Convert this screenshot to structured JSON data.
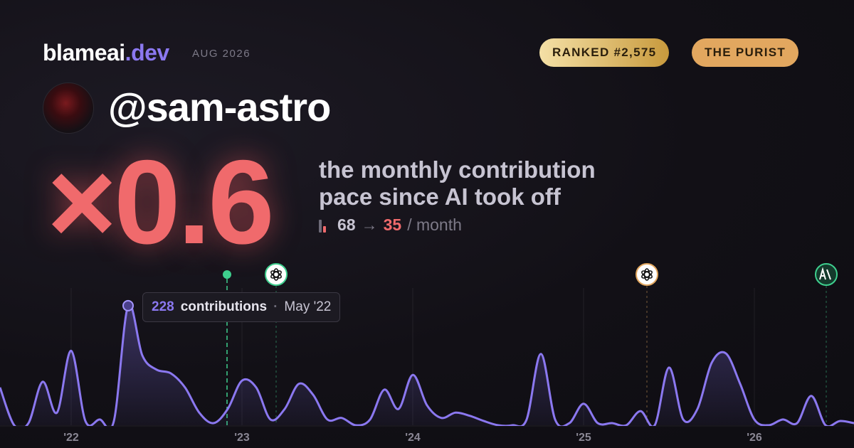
{
  "header": {
    "brand": "blameai",
    "brand_tld": ".dev",
    "date": "AUG 2026",
    "badges": [
      "RANKED #2,575",
      "THE PURIST"
    ]
  },
  "profile": {
    "handle": "@sam-astro"
  },
  "headline": {
    "multiplier": "×0.6",
    "description_line1": "the monthly contribution",
    "description_line2": "pace since AI took off",
    "before": "68",
    "arrow": "→",
    "after": "35",
    "unit": "/ month"
  },
  "chart_data": {
    "type": "line",
    "categories": [
      null,
      null,
      null,
      null,
      null,
      "'22",
      null,
      null,
      null,
      null,
      null,
      null,
      null,
      null,
      null,
      null,
      null,
      "'23",
      null,
      null,
      null,
      null,
      null,
      null,
      null,
      null,
      null,
      null,
      null,
      "'24",
      null,
      null,
      null,
      null,
      null,
      null,
      null,
      null,
      null,
      null,
      null,
      "'25",
      null,
      null,
      null,
      null,
      null,
      null,
      null,
      null,
      null,
      null,
      null,
      "'26",
      null,
      null,
      null,
      null,
      null,
      null,
      null
    ],
    "series": [
      {
        "color": "#8b78f0",
        "values": [
          72,
          0,
          4,
          83,
          24,
          142,
          8,
          11,
          8,
          228,
          133,
          106,
          99,
          72,
          24,
          4,
          31,
          85,
          72,
          11,
          31,
          79,
          58,
          11,
          14,
          0,
          11,
          68,
          31,
          96,
          38,
          14,
          24,
          18,
          8,
          0,
          0,
          11,
          136,
          11,
          4,
          41,
          4,
          4,
          0,
          27,
          0,
          110,
          11,
          31,
          119,
          137,
          79,
          11,
          0,
          11,
          4,
          56,
          0,
          8,
          4
        ]
      }
    ],
    "ylim": [
      0,
      240
    ],
    "grid": true,
    "highlight_index": 9,
    "tooltip_label": "contributions",
    "tooltip_separator": "·",
    "tooltip_date": "May '22"
  }
}
